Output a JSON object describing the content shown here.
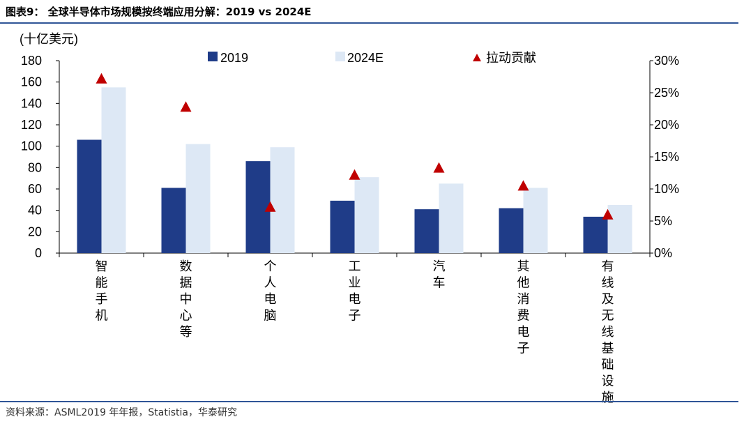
{
  "header": {
    "title": "图表9：  全球半导体市场规模按终端应用分解：2019 vs 2024E"
  },
  "footer": {
    "source": "资料来源：ASML2019 年年报，Statistia，华泰研究"
  },
  "colors": {
    "bar_2019": "#1f3c88",
    "bar_2024": "#dde8f5",
    "marker": "#c00000",
    "rule": "#2f5597"
  },
  "chart_data": {
    "type": "bar",
    "y_unit_label": "(十亿美元)",
    "categories": [
      "智能手机",
      "数据中心等",
      "个人电脑",
      "工业电子",
      "汽车",
      "其他消费电子",
      "有线及无线基础设施"
    ],
    "series": [
      {
        "name": "2019",
        "type": "bar",
        "axis": "left",
        "values": [
          106,
          61,
          86,
          49,
          41,
          42,
          34
        ]
      },
      {
        "name": "2024E",
        "type": "bar",
        "axis": "left",
        "values": [
          155,
          102,
          99,
          71,
          65,
          61,
          45
        ]
      },
      {
        "name": "拉动贡献",
        "type": "scatter",
        "marker": "triangle",
        "axis": "right",
        "values": [
          27.2,
          22.8,
          7.2,
          12.2,
          13.3,
          10.5,
          6.0
        ]
      }
    ],
    "y_left": {
      "min": 0,
      "max": 180,
      "ticks": [
        "0",
        "20",
        "40",
        "60",
        "80",
        "100",
        "120",
        "140",
        "160",
        "180"
      ]
    },
    "y_right": {
      "min": 0,
      "max": 30,
      "ticks": [
        "0%",
        "5%",
        "10%",
        "15%",
        "20%",
        "25%",
        "30%"
      ]
    },
    "legend_position": "top",
    "grid": false
  }
}
